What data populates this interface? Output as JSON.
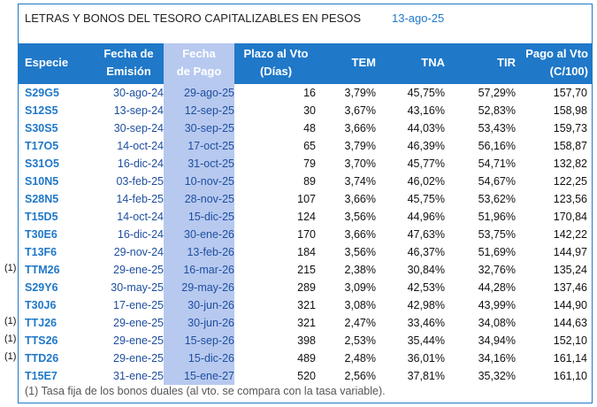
{
  "title": "LETRAS Y BONOS DEL TESORO CAPITALIZABLES EN PESOS",
  "date": "13-ago-25",
  "headers": {
    "especie": "Especie",
    "fecha_emision_1": "Fecha de",
    "fecha_emision_2": "Emisión",
    "fecha_pago_1": "Fecha",
    "fecha_pago_2": "de Pago",
    "plazo_1": "Plazo al Vto",
    "plazo_2": "(Días)",
    "tem": "TEM",
    "tna": "TNA",
    "tir": "TIR",
    "pago_1": "Pago al Vto",
    "pago_2": "(C/100)"
  },
  "rows": [
    {
      "especie": "S29G5",
      "emision": "30-ago-24",
      "pago": "29-ago-25",
      "plazo": "16",
      "tem": "3,79%",
      "tna": "45,75%",
      "tir": "57,29%",
      "vto": "157,70",
      "mark": ""
    },
    {
      "especie": "S12S5",
      "emision": "13-sep-24",
      "pago": "12-sep-25",
      "plazo": "30",
      "tem": "3,67%",
      "tna": "43,16%",
      "tir": "52,83%",
      "vto": "158,98",
      "mark": ""
    },
    {
      "especie": "S30S5",
      "emision": "30-sep-24",
      "pago": "30-sep-25",
      "plazo": "48",
      "tem": "3,66%",
      "tna": "44,03%",
      "tir": "53,43%",
      "vto": "159,73",
      "mark": ""
    },
    {
      "especie": "T17O5",
      "emision": "14-oct-24",
      "pago": "17-oct-25",
      "plazo": "65",
      "tem": "3,79%",
      "tna": "46,39%",
      "tir": "56,16%",
      "vto": "158,87",
      "mark": ""
    },
    {
      "especie": "S31O5",
      "emision": "16-dic-24",
      "pago": "31-oct-25",
      "plazo": "79",
      "tem": "3,70%",
      "tna": "45,77%",
      "tir": "54,71%",
      "vto": "132,82",
      "mark": ""
    },
    {
      "especie": "S10N5",
      "emision": "03-feb-25",
      "pago": "10-nov-25",
      "plazo": "89",
      "tem": "3,74%",
      "tna": "46,02%",
      "tir": "54,67%",
      "vto": "122,25",
      "mark": ""
    },
    {
      "especie": "S28N5",
      "emision": "14-feb-25",
      "pago": "28-nov-25",
      "plazo": "107",
      "tem": "3,66%",
      "tna": "45,75%",
      "tir": "53,62%",
      "vto": "123,56",
      "mark": ""
    },
    {
      "especie": "T15D5",
      "emision": "14-oct-24",
      "pago": "15-dic-25",
      "plazo": "124",
      "tem": "3,56%",
      "tna": "44,96%",
      "tir": "51,96%",
      "vto": "170,84",
      "mark": ""
    },
    {
      "especie": "T30E6",
      "emision": "16-dic-24",
      "pago": "30-ene-26",
      "plazo": "170",
      "tem": "3,66%",
      "tna": "47,63%",
      "tir": "53,75%",
      "vto": "142,22",
      "mark": ""
    },
    {
      "especie": "T13F6",
      "emision": "29-nov-24",
      "pago": "13-feb-26",
      "plazo": "184",
      "tem": "3,56%",
      "tna": "46,37%",
      "tir": "51,69%",
      "vto": "144,97",
      "mark": ""
    },
    {
      "especie": "TTM26",
      "emision": "29-ene-25",
      "pago": "16-mar-26",
      "plazo": "215",
      "tem": "2,38%",
      "tna": "30,84%",
      "tir": "32,76%",
      "vto": "135,24",
      "mark": "(1)"
    },
    {
      "especie": "S29Y6",
      "emision": "30-may-25",
      "pago": "29-may-26",
      "plazo": "289",
      "tem": "3,09%",
      "tna": "42,53%",
      "tir": "44,28%",
      "vto": "137,46",
      "mark": ""
    },
    {
      "especie": "T30J6",
      "emision": "17-ene-25",
      "pago": "30-jun-26",
      "plazo": "321",
      "tem": "3,08%",
      "tna": "42,98%",
      "tir": "43,99%",
      "vto": "144,90",
      "mark": ""
    },
    {
      "especie": "TTJ26",
      "emision": "29-ene-25",
      "pago": "30-jun-26",
      "plazo": "321",
      "tem": "2,47%",
      "tna": "33,46%",
      "tir": "34,08%",
      "vto": "144,63",
      "mark": "(1)"
    },
    {
      "especie": "TTS26",
      "emision": "29-ene-25",
      "pago": "15-sep-26",
      "plazo": "398",
      "tem": "2,53%",
      "tna": "35,44%",
      "tir": "34,94%",
      "vto": "152,10",
      "mark": "(1)"
    },
    {
      "especie": "TTD26",
      "emision": "29-ene-25",
      "pago": "15-dic-26",
      "plazo": "489",
      "tem": "2,48%",
      "tna": "36,01%",
      "tir": "34,16%",
      "vto": "161,14",
      "mark": "(1)"
    },
    {
      "especie": "T15E7",
      "emision": "31-ene-25",
      "pago": "15-ene-27",
      "plazo": "520",
      "tem": "2,56%",
      "tna": "37,81%",
      "tir": "35,32%",
      "vto": "161,10",
      "mark": ""
    }
  ],
  "footer": "(1) Tasa fija de los bonos duales (al vto. se compara con la tasa variable)."
}
